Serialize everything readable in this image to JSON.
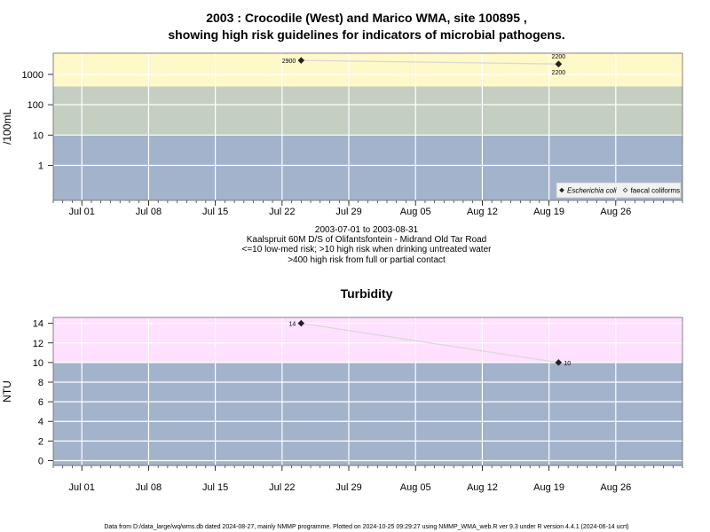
{
  "figure": {
    "title_line1": "2003 : Crocodile (West) and Marico WMA, site 100895 ,",
    "title_line2": "showing high risk guidelines for indicators of microbial pathogens.",
    "caption_lines": [
      "2003-07-01 to 2003-08-31",
      "Kaalspruit 60M D/S of Olifantsfontein - Midrand Old Tar Road",
      "<=10 low-med risk; >10 high risk when drinking untreated water",
      ">400 high risk from full or partial contact"
    ],
    "footer": "Data from D:/data_large/wq/wms.db dated 2024-08-27, mainly NMMP programme. Plotted on 2024-10-25 09:29:27 using NMMP_WMA_web.R ver 9.3 under R version 4.4.1 (2024-06-14 ucrt)",
    "colors": {
      "band_blue": "#a3b3cb",
      "band_green": "#c4cfc2",
      "band_yellow": "#fff8c8",
      "band_pink": "#ffe0ff",
      "gridline": "#ffffff",
      "series_line": "#d9d9d9",
      "point": "#222222"
    }
  },
  "chart_data": [
    {
      "type": "line",
      "title": "",
      "xlabel": "",
      "ylabel": "/100mL",
      "y_scale": "log",
      "ylim": [
        0.07,
        5000
      ],
      "xlim": [
        "2003-06-28",
        "2003-09-02"
      ],
      "y_ticks": [
        1,
        10,
        100,
        1000
      ],
      "y_tick_labels": [
        "1",
        "10",
        "100",
        "1000"
      ],
      "x_ticks": [
        "2003-07-01",
        "2003-07-08",
        "2003-07-15",
        "2003-07-22",
        "2003-07-29",
        "2003-08-05",
        "2003-08-12",
        "2003-08-19",
        "2003-08-26"
      ],
      "x_tick_labels": [
        "Jul 01",
        "Jul 08",
        "Jul 15",
        "Jul 22",
        "Jul 29",
        "Aug 05",
        "Aug 12",
        "Aug 19",
        "Aug 26"
      ],
      "bands": [
        {
          "from": 0.07,
          "to": 10,
          "color": "#a3b3cb"
        },
        {
          "from": 10,
          "to": 400,
          "color": "#c4cfc2"
        },
        {
          "from": 400,
          "to": 5000,
          "color": "#fff8c8"
        }
      ],
      "series": [
        {
          "name": "Escherichia coli",
          "marker": "filled-diamond",
          "x": [
            "2003-07-24",
            "2003-08-20"
          ],
          "y": [
            2900,
            2200
          ],
          "point_labels": [
            "2900",
            "2200"
          ],
          "label_side": [
            "left",
            "below"
          ]
        },
        {
          "name": "faecal coliforms",
          "marker": "open-diamond",
          "x": [
            "2003-08-20"
          ],
          "y": [
            2200
          ],
          "point_labels": [
            "2200"
          ],
          "label_side": [
            "above"
          ]
        }
      ],
      "legend": "bottom-right",
      "grid": true
    },
    {
      "type": "line",
      "title": "Turbidity",
      "xlabel": "",
      "ylabel": "NTU",
      "y_scale": "linear",
      "ylim": [
        -0.5,
        14.6
      ],
      "xlim": [
        "2003-06-28",
        "2003-09-02"
      ],
      "y_ticks": [
        0,
        2,
        4,
        6,
        8,
        10,
        12,
        14
      ],
      "y_tick_labels": [
        "0",
        "2",
        "4",
        "6",
        "8",
        "10",
        "12",
        "14"
      ],
      "x_ticks": [
        "2003-07-01",
        "2003-07-08",
        "2003-07-15",
        "2003-07-22",
        "2003-07-29",
        "2003-08-05",
        "2003-08-12",
        "2003-08-19",
        "2003-08-26"
      ],
      "x_tick_labels": [
        "Jul 01",
        "Jul 08",
        "Jul 15",
        "Jul 22",
        "Jul 29",
        "Aug 05",
        "Aug 12",
        "Aug 19",
        "Aug 26"
      ],
      "bands": [
        {
          "from": -0.5,
          "to": 10,
          "color": "#a3b3cb"
        },
        {
          "from": 10,
          "to": 14.6,
          "color": "#ffe0ff"
        }
      ],
      "series": [
        {
          "marker": "filled-diamond",
          "x": [
            "2003-07-24",
            "2003-08-20"
          ],
          "y": [
            14,
            10
          ],
          "point_labels": [
            "14",
            "10"
          ],
          "label_side": [
            "left",
            "right"
          ]
        }
      ],
      "grid": true
    }
  ]
}
